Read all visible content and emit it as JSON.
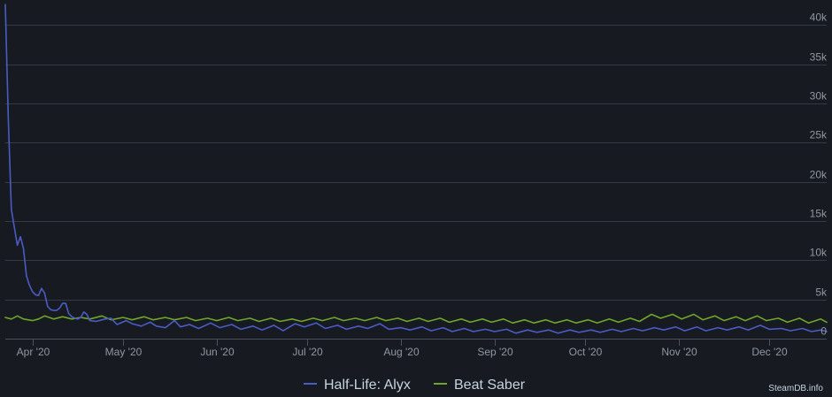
{
  "chart_data": {
    "type": "line",
    "title": "",
    "xlabel": "",
    "ylabel": "",
    "x_start": "2020-03-23",
    "x_end": "2020-12-20",
    "ylim": [
      0,
      42500
    ],
    "y_ticks": [
      0,
      5000,
      10000,
      15000,
      20000,
      25000,
      30000,
      35000,
      40000
    ],
    "y_tick_labels": [
      "0",
      "5k",
      "10k",
      "15k",
      "20k",
      "25k",
      "30k",
      "35k",
      "40k"
    ],
    "x_ticks": [
      "2020-04-01",
      "2020-05-01",
      "2020-06-01",
      "2020-07-01",
      "2020-08-01",
      "2020-09-01",
      "2020-10-01",
      "2020-11-01",
      "2020-12-01"
    ],
    "x_tick_labels": [
      "Apr '20",
      "May '20",
      "Jun '20",
      "Jul '20",
      "Aug '20",
      "Sep '20",
      "Oct '20",
      "Nov '20",
      "Dec '20"
    ],
    "grid": true,
    "legend_position": "bottom-center",
    "series": [
      {
        "name": "Half-Life: Alyx",
        "color": "#4a5cc4",
        "points": [
          [
            "2020-03-23",
            42600
          ],
          [
            "2020-03-24",
            28000
          ],
          [
            "2020-03-25",
            16500
          ],
          [
            "2020-03-26",
            14200
          ],
          [
            "2020-03-27",
            11900
          ],
          [
            "2020-03-28",
            13000
          ],
          [
            "2020-03-29",
            11500
          ],
          [
            "2020-03-30",
            8000
          ],
          [
            "2020-03-31",
            6800
          ],
          [
            "2020-04-01",
            6000
          ],
          [
            "2020-04-02",
            5600
          ],
          [
            "2020-04-03",
            5500
          ],
          [
            "2020-04-04",
            6400
          ],
          [
            "2020-04-05",
            5800
          ],
          [
            "2020-04-06",
            4100
          ],
          [
            "2020-04-07",
            3700
          ],
          [
            "2020-04-08",
            3600
          ],
          [
            "2020-04-09",
            3600
          ],
          [
            "2020-04-10",
            3900
          ],
          [
            "2020-04-11",
            4500
          ],
          [
            "2020-04-12",
            4500
          ],
          [
            "2020-04-13",
            3200
          ],
          [
            "2020-04-14",
            2800
          ],
          [
            "2020-04-15",
            2600
          ],
          [
            "2020-04-16",
            2500
          ],
          [
            "2020-04-17",
            2700
          ],
          [
            "2020-04-18",
            3400
          ],
          [
            "2020-04-19",
            3100
          ],
          [
            "2020-04-20",
            2300
          ],
          [
            "2020-04-22",
            2200
          ],
          [
            "2020-04-25",
            2500
          ],
          [
            "2020-04-27",
            2600
          ],
          [
            "2020-04-29",
            1800
          ],
          [
            "2020-05-02",
            2300
          ],
          [
            "2020-05-04",
            1900
          ],
          [
            "2020-05-07",
            1600
          ],
          [
            "2020-05-10",
            2100
          ],
          [
            "2020-05-12",
            1600
          ],
          [
            "2020-05-15",
            1400
          ],
          [
            "2020-05-18",
            2300
          ],
          [
            "2020-05-20",
            1500
          ],
          [
            "2020-05-23",
            1800
          ],
          [
            "2020-05-26",
            1300
          ],
          [
            "2020-05-30",
            2000
          ],
          [
            "2020-06-02",
            1400
          ],
          [
            "2020-06-06",
            1800
          ],
          [
            "2020-06-09",
            1200
          ],
          [
            "2020-06-13",
            1600
          ],
          [
            "2020-06-16",
            1100
          ],
          [
            "2020-06-20",
            1700
          ],
          [
            "2020-06-23",
            1000
          ],
          [
            "2020-06-27",
            1900
          ],
          [
            "2020-06-30",
            1500
          ],
          [
            "2020-07-04",
            2000
          ],
          [
            "2020-07-07",
            1300
          ],
          [
            "2020-07-11",
            1700
          ],
          [
            "2020-07-14",
            1200
          ],
          [
            "2020-07-18",
            1600
          ],
          [
            "2020-07-21",
            1300
          ],
          [
            "2020-07-25",
            1900
          ],
          [
            "2020-07-28",
            1200
          ],
          [
            "2020-08-01",
            1400
          ],
          [
            "2020-08-04",
            1100
          ],
          [
            "2020-08-08",
            1500
          ],
          [
            "2020-08-11",
            1000
          ],
          [
            "2020-08-15",
            1400
          ],
          [
            "2020-08-18",
            900
          ],
          [
            "2020-08-22",
            1300
          ],
          [
            "2020-08-25",
            900
          ],
          [
            "2020-08-29",
            1200
          ],
          [
            "2020-09-01",
            900
          ],
          [
            "2020-09-05",
            1200
          ],
          [
            "2020-09-08",
            700
          ],
          [
            "2020-09-12",
            1100
          ],
          [
            "2020-09-15",
            800
          ],
          [
            "2020-09-19",
            1100
          ],
          [
            "2020-09-22",
            700
          ],
          [
            "2020-09-26",
            1100
          ],
          [
            "2020-09-29",
            800
          ],
          [
            "2020-10-03",
            1100
          ],
          [
            "2020-10-06",
            800
          ],
          [
            "2020-10-10",
            1200
          ],
          [
            "2020-10-13",
            900
          ],
          [
            "2020-10-17",
            1300
          ],
          [
            "2020-10-20",
            1000
          ],
          [
            "2020-10-24",
            1400
          ],
          [
            "2020-10-27",
            1100
          ],
          [
            "2020-10-31",
            1500
          ],
          [
            "2020-11-03",
            1000
          ],
          [
            "2020-11-07",
            1500
          ],
          [
            "2020-11-10",
            1000
          ],
          [
            "2020-11-14",
            1400
          ],
          [
            "2020-11-17",
            1100
          ],
          [
            "2020-11-21",
            1500
          ],
          [
            "2020-11-24",
            1100
          ],
          [
            "2020-11-28",
            1700
          ],
          [
            "2020-12-01",
            1200
          ],
          [
            "2020-12-05",
            1300
          ],
          [
            "2020-12-08",
            1000
          ],
          [
            "2020-12-12",
            1300
          ],
          [
            "2020-12-15",
            900
          ],
          [
            "2020-12-18",
            1100
          ],
          [
            "2020-12-20",
            900
          ]
        ]
      },
      {
        "name": "Beat Saber",
        "color": "#6fa52b",
        "points": [
          [
            "2020-03-23",
            2700
          ],
          [
            "2020-03-25",
            2500
          ],
          [
            "2020-03-27",
            2900
          ],
          [
            "2020-03-29",
            2500
          ],
          [
            "2020-04-01",
            2300
          ],
          [
            "2020-04-03",
            2500
          ],
          [
            "2020-04-05",
            2900
          ],
          [
            "2020-04-08",
            2500
          ],
          [
            "2020-04-11",
            2800
          ],
          [
            "2020-04-14",
            2500
          ],
          [
            "2020-04-17",
            2700
          ],
          [
            "2020-04-20",
            2500
          ],
          [
            "2020-04-24",
            2900
          ],
          [
            "2020-04-27",
            2400
          ],
          [
            "2020-05-01",
            2700
          ],
          [
            "2020-05-04",
            2400
          ],
          [
            "2020-05-08",
            2800
          ],
          [
            "2020-05-11",
            2400
          ],
          [
            "2020-05-15",
            2700
          ],
          [
            "2020-05-18",
            2400
          ],
          [
            "2020-05-22",
            2700
          ],
          [
            "2020-05-25",
            2300
          ],
          [
            "2020-05-29",
            2600
          ],
          [
            "2020-06-01",
            2300
          ],
          [
            "2020-06-05",
            2700
          ],
          [
            "2020-06-08",
            2300
          ],
          [
            "2020-06-12",
            2600
          ],
          [
            "2020-06-15",
            2200
          ],
          [
            "2020-06-19",
            2600
          ],
          [
            "2020-06-22",
            2200
          ],
          [
            "2020-06-26",
            2500
          ],
          [
            "2020-06-29",
            2200
          ],
          [
            "2020-07-03",
            2600
          ],
          [
            "2020-07-06",
            2300
          ],
          [
            "2020-07-10",
            2700
          ],
          [
            "2020-07-13",
            2300
          ],
          [
            "2020-07-17",
            2600
          ],
          [
            "2020-07-20",
            2300
          ],
          [
            "2020-07-24",
            2700
          ],
          [
            "2020-07-27",
            2300
          ],
          [
            "2020-07-31",
            2600
          ],
          [
            "2020-08-03",
            2200
          ],
          [
            "2020-08-07",
            2600
          ],
          [
            "2020-08-10",
            2200
          ],
          [
            "2020-08-14",
            2600
          ],
          [
            "2020-08-17",
            2100
          ],
          [
            "2020-08-21",
            2500
          ],
          [
            "2020-08-24",
            2100
          ],
          [
            "2020-08-28",
            2500
          ],
          [
            "2020-08-31",
            2100
          ],
          [
            "2020-09-04",
            2500
          ],
          [
            "2020-09-07",
            2000
          ],
          [
            "2020-09-11",
            2400
          ],
          [
            "2020-09-14",
            2000
          ],
          [
            "2020-09-18",
            2400
          ],
          [
            "2020-09-21",
            2000
          ],
          [
            "2020-09-25",
            2400
          ],
          [
            "2020-09-28",
            2000
          ],
          [
            "2020-10-02",
            2400
          ],
          [
            "2020-10-05",
            2000
          ],
          [
            "2020-10-09",
            2500
          ],
          [
            "2020-10-12",
            2100
          ],
          [
            "2020-10-16",
            2600
          ],
          [
            "2020-10-19",
            2200
          ],
          [
            "2020-10-23",
            3100
          ],
          [
            "2020-10-26",
            2600
          ],
          [
            "2020-10-30",
            3100
          ],
          [
            "2020-11-02",
            2500
          ],
          [
            "2020-11-06",
            3100
          ],
          [
            "2020-11-09",
            2400
          ],
          [
            "2020-11-13",
            2900
          ],
          [
            "2020-11-16",
            2300
          ],
          [
            "2020-11-20",
            2800
          ],
          [
            "2020-11-23",
            2300
          ],
          [
            "2020-11-27",
            2900
          ],
          [
            "2020-11-30",
            2300
          ],
          [
            "2020-12-04",
            2600
          ],
          [
            "2020-12-07",
            2100
          ],
          [
            "2020-12-11",
            2600
          ],
          [
            "2020-12-14",
            2000
          ],
          [
            "2020-12-18",
            2500
          ],
          [
            "2020-12-20",
            2100
          ]
        ]
      }
    ]
  },
  "legend": {
    "items": [
      {
        "label": "Half-Life: Alyx",
        "color": "#4a5cc4"
      },
      {
        "label": "Beat Saber",
        "color": "#6fa52b"
      }
    ]
  },
  "credit": "SteamDB.info"
}
